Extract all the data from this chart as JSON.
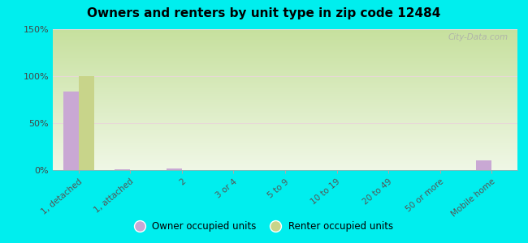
{
  "title": "Owners and renters by unit type in zip code 12484",
  "categories": [
    "1, detached",
    "1, attached",
    "2",
    "3 or 4",
    "5 to 9",
    "10 to 19",
    "20 to 49",
    "50 or more",
    "Mobile home"
  ],
  "owner_values": [
    84,
    1,
    2,
    0,
    0,
    0,
    0,
    0,
    10
  ],
  "renter_values": [
    100,
    0,
    0,
    0,
    0,
    0,
    0,
    0,
    0
  ],
  "owner_color": "#c9a8d4",
  "renter_color": "#c8d48a",
  "background_color": "#00eeee",
  "ylim": [
    0,
    150
  ],
  "yticks": [
    0,
    50,
    100,
    150
  ],
  "ytick_labels": [
    "0%",
    "50%",
    "100%",
    "150%"
  ],
  "bar_width": 0.3,
  "legend_owner": "Owner occupied units",
  "legend_renter": "Renter occupied units",
  "watermark": "City-Data.com",
  "plot_left_color": "#f0f5e0",
  "plot_right_color": "#d8ecc8"
}
